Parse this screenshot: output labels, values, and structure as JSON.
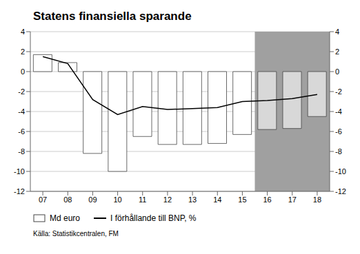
{
  "chart_data": {
    "type": "bar",
    "title": "Statens finansiella sparande",
    "categories": [
      "07",
      "08",
      "09",
      "10",
      "11",
      "12",
      "13",
      "14",
      "15",
      "16",
      "17",
      "18"
    ],
    "series": [
      {
        "name": "Md euro",
        "type": "bar",
        "color": "#ffffff",
        "colors": [
          "#ffffff",
          "#ffffff",
          "#ffffff",
          "#ffffff",
          "#ffffff",
          "#ffffff",
          "#ffffff",
          "#ffffff",
          "#ffffff",
          "#d8d8d8",
          "#d8d8d8",
          "#d8d8d8"
        ],
        "values": [
          1.7,
          0.9,
          -8.2,
          -10.0,
          -6.5,
          -7.3,
          -7.3,
          -7.2,
          -6.3,
          -5.8,
          -5.7,
          -4.5
        ]
      },
      {
        "name": "I förhållande till BNP, %",
        "type": "line",
        "color": "#000000",
        "values": [
          1.5,
          0.8,
          -2.8,
          -4.3,
          -3.5,
          -3.8,
          -3.7,
          -3.6,
          -3.0,
          -2.9,
          -2.7,
          -2.3
        ]
      }
    ],
    "ylim": [
      -12,
      4
    ],
    "yticks": [
      -12,
      -10,
      -8,
      -6,
      -4,
      -2,
      0,
      2,
      4
    ],
    "y2lim": [
      -12,
      4
    ],
    "y2ticks": [
      -12,
      -10,
      -8,
      -6,
      -4,
      -2,
      0,
      2,
      4
    ],
    "grid": true,
    "shaded_region": {
      "from": "16",
      "to": "18",
      "color": "#a0a0a0"
    },
    "source": "Källa: Statistikcentralen, FM"
  }
}
